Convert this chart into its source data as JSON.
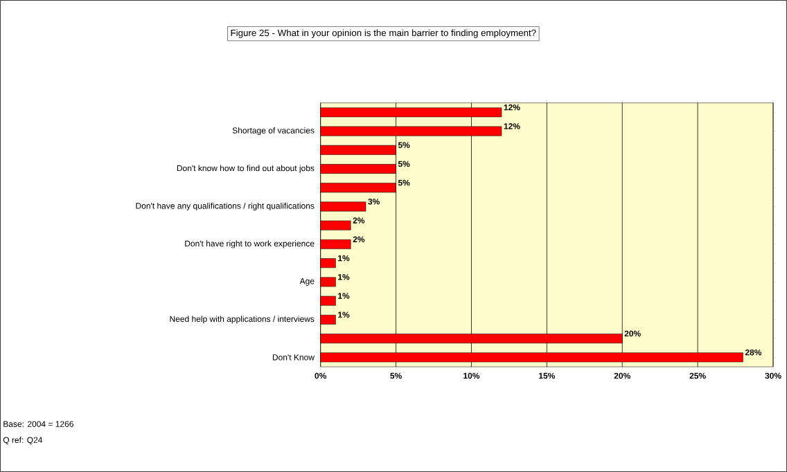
{
  "chart_data": {
    "type": "bar",
    "orientation": "horizontal",
    "title": "Figure 25 - What in your opinion is the main barrier to finding employment?",
    "categories": [
      null,
      "Shortage of vacancies",
      null,
      "Don't know how to find out about jobs",
      null,
      "Don't have any qualifications / right qualifications",
      null,
      "Don't have right to work experience",
      null,
      "Age",
      null,
      "Need help with applications / interviews",
      null,
      "Don't Know"
    ],
    "values": [
      12,
      12,
      5,
      5,
      5,
      3,
      2,
      2,
      1,
      1,
      1,
      1,
      20,
      28
    ],
    "value_labels": [
      "12%",
      "12%",
      "5%",
      "5%",
      "5%",
      "3%",
      "2%",
      "2%",
      "1%",
      "1%",
      "1%",
      "1%",
      "20%",
      "28%"
    ],
    "color": "#ff0000",
    "xlim": [
      0,
      30
    ],
    "xticks": [
      {
        "value": 0,
        "label": "0%"
      },
      {
        "value": 5,
        "label": "5%"
      },
      {
        "value": 10,
        "label": "10%"
      },
      {
        "value": 15,
        "label": "15%"
      },
      {
        "value": 20,
        "label": "20%"
      },
      {
        "value": 25,
        "label": "25%"
      },
      {
        "value": 30,
        "label": "30%"
      }
    ],
    "grid": "x",
    "annotations": [
      "Base: 2004 = 1266",
      "Q ref: Q24"
    ]
  }
}
